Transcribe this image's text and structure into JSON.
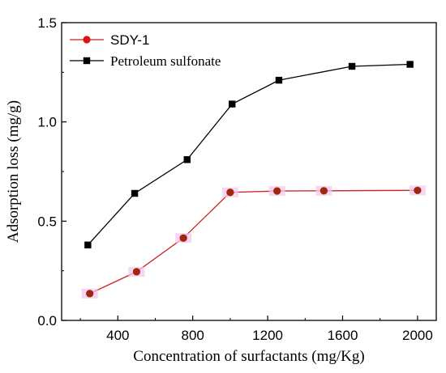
{
  "chart_data": {
    "type": "line",
    "xlabel": "Concentration of surfactants (mg/Kg)",
    "ylabel": "Adsorption loss (mg/g)",
    "xlim": [
      100,
      2100
    ],
    "ylim": [
      0,
      1.5
    ],
    "xticks": [
      400,
      800,
      1200,
      1600,
      2000
    ],
    "yticks": [
      0.0,
      0.5,
      1.0,
      1.5
    ],
    "xtick_labels": [
      "400",
      "800",
      "1200",
      "1600",
      "2000"
    ],
    "ytick_labels": [
      "0.0",
      "0.5",
      "1.0",
      "1.5"
    ],
    "grid": false,
    "legend_position": "top-left",
    "series": [
      {
        "name": "SDY-1",
        "marker": "circle",
        "line_color": "#cc2222",
        "marker_color": "#dd1111",
        "x": [
          250,
          500,
          750,
          1000,
          1250,
          1500,
          2000
        ],
        "y": [
          0.135,
          0.245,
          0.415,
          0.645,
          0.652,
          0.653,
          0.655
        ]
      },
      {
        "name": "Petroleum sulfonate",
        "marker": "square",
        "line_color": "#000000",
        "marker_color": "#000000",
        "x": [
          240,
          490,
          770,
          1010,
          1260,
          1650,
          1960
        ],
        "y": [
          0.38,
          0.64,
          0.81,
          1.09,
          1.21,
          1.28,
          1.29
        ]
      }
    ]
  }
}
